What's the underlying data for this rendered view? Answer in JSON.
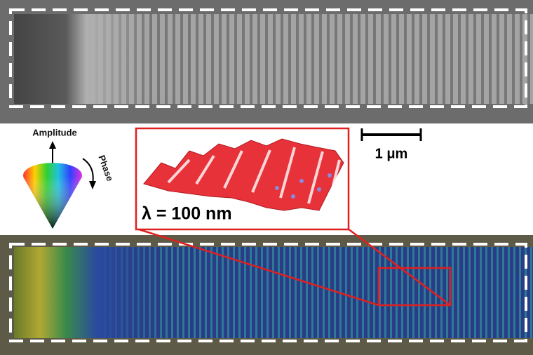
{
  "labels": {
    "amplitude": "Amplitude",
    "phase": "Phase",
    "scale_bar": "1 μm",
    "wavelength": "λ = 100 nm"
  }
}
